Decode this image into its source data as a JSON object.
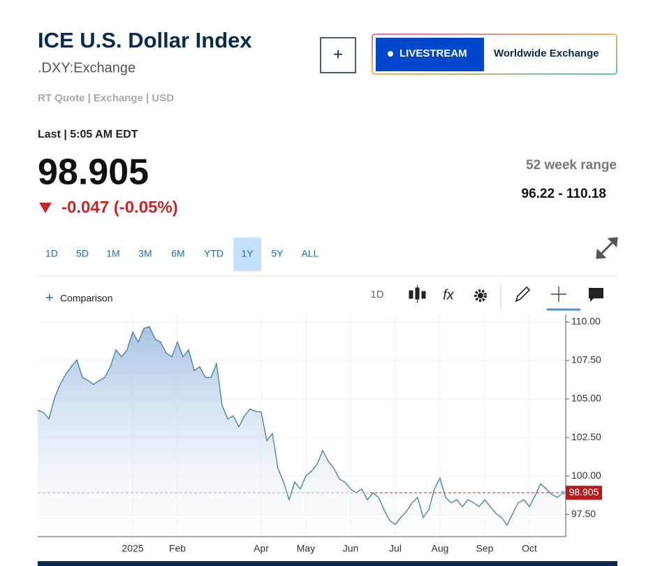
{
  "header": {
    "title": "ICE U.S. Dollar Index",
    "symbol": ".DXY:Exchange",
    "meta": "RT Quote | Exchange | USD",
    "add_button": "+",
    "livestream": "LIVESTREAM",
    "exchange": "Worldwide Exchange"
  },
  "quote": {
    "last_label": "Last | 5:05 AM EDT",
    "price": "98.905",
    "change": "-0.047 (-0.05%)",
    "range_label": "52 week range",
    "range": "96.22 - 110.18"
  },
  "ranges": [
    "1D",
    "5D",
    "1M",
    "3M",
    "6M",
    "YTD",
    "1Y",
    "5Y",
    "ALL"
  ],
  "selected_range": "1Y",
  "toolbar": {
    "comparison": "Comparison",
    "interval": "1D"
  },
  "chart_data": {
    "type": "line",
    "color": "#4a86a8",
    "grid": true,
    "categories": [
      null,
      null,
      null,
      null,
      null,
      null,
      null,
      null,
      null,
      null,
      null,
      null,
      null,
      null,
      null,
      null,
      null,
      "2025",
      null,
      null,
      null,
      null,
      null,
      null,
      null,
      "Feb",
      null,
      null,
      null,
      null,
      null,
      null,
      null,
      null,
      null,
      null,
      null,
      null,
      null,
      null,
      "Apr",
      null,
      null,
      null,
      null,
      null,
      null,
      null,
      "May",
      null,
      null,
      null,
      null,
      null,
      null,
      null,
      "Jun",
      null,
      null,
      null,
      null,
      null,
      null,
      null,
      "Jul",
      null,
      null,
      null,
      null,
      null,
      null,
      null,
      "Aug",
      null,
      null,
      null,
      null,
      null,
      null,
      null,
      "Sep",
      null,
      null,
      null,
      null,
      null,
      null,
      null,
      "Oct",
      null,
      null,
      null,
      null,
      null,
      null
    ],
    "values": [
      104.27,
      104.14,
      103.7,
      105.05,
      105.95,
      106.6,
      107.1,
      107.55,
      106.4,
      106.2,
      105.95,
      106.2,
      106.4,
      107.1,
      108.2,
      107.75,
      108.2,
      109.35,
      108.7,
      109.6,
      109.7,
      108.9,
      108.7,
      108.0,
      107.75,
      108.7,
      107.75,
      108.2,
      106.85,
      107.1,
      106.4,
      106.4,
      107.3,
      104.6,
      103.7,
      103.9,
      103.2,
      103.9,
      104.35,
      104.2,
      104.15,
      102.3,
      102.75,
      100.5,
      99.6,
      98.45,
      99.6,
      99.15,
      100.0,
      100.3,
      100.75,
      101.65,
      100.95,
      100.5,
      99.8,
      99.6,
      99.15,
      98.9,
      99.15,
      98.45,
      98.9,
      98.6,
      97.8,
      97.1,
      96.85,
      97.3,
      97.7,
      98.25,
      98.6,
      97.3,
      97.8,
      99.15,
      99.85,
      98.6,
      98.25,
      98.45,
      98.0,
      98.45,
      98.25,
      98.0,
      98.45,
      98.0,
      97.55,
      97.3,
      96.8,
      97.55,
      98.25,
      98.45,
      98.0,
      98.7,
      99.5,
      99.15,
      98.8,
      98.6,
      98.905
    ],
    "ylim": [
      96.05,
      110.5
    ],
    "yticks": [
      {
        "value": 97.5,
        "label": "97.50"
      },
      {
        "value": 100,
        "label": "100.00"
      },
      {
        "value": 102.5,
        "label": "102.50"
      },
      {
        "value": 105,
        "label": "105.00"
      },
      {
        "value": 107.5,
        "label": "107.50"
      },
      {
        "value": 110,
        "label": "110.00"
      }
    ]
  }
}
